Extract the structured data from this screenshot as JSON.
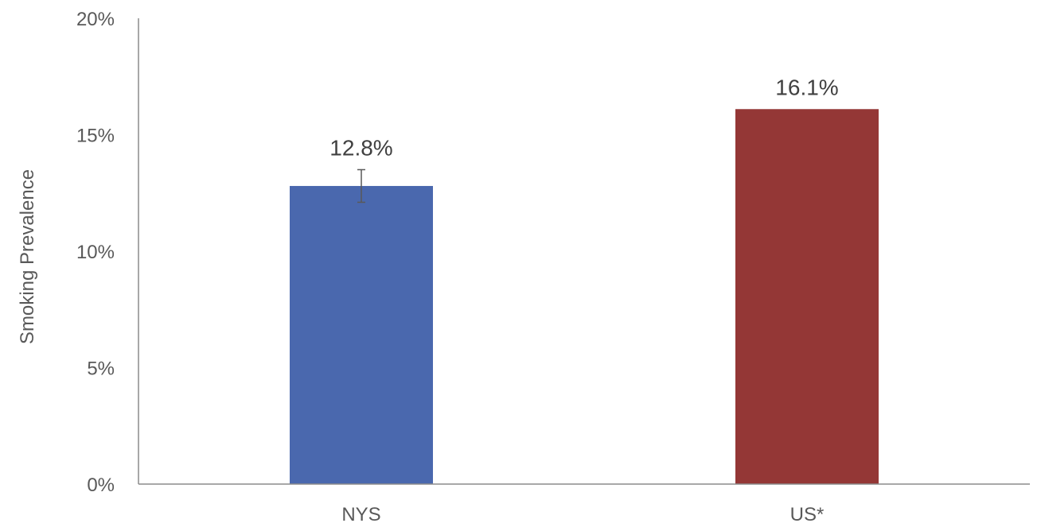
{
  "chart_data": {
    "type": "bar",
    "title": "",
    "xlabel": "",
    "ylabel": "Smoking Prevalence",
    "ylim": [
      0,
      20
    ],
    "yticks": [
      0,
      5,
      10,
      15,
      20
    ],
    "ytick_labels": [
      "0%",
      "5%",
      "10%",
      "15%",
      "20%"
    ],
    "grid": false,
    "legend": "none",
    "categories": [
      "NYS",
      "US*"
    ],
    "values": [
      12.8,
      16.1
    ],
    "value_labels": [
      "12.8%",
      "16.1%"
    ],
    "colors": [
      "#4a68ae",
      "#943736"
    ],
    "error_bars": [
      {
        "category": "NYS",
        "low": 12.1,
        "high": 13.5
      },
      null
    ]
  }
}
